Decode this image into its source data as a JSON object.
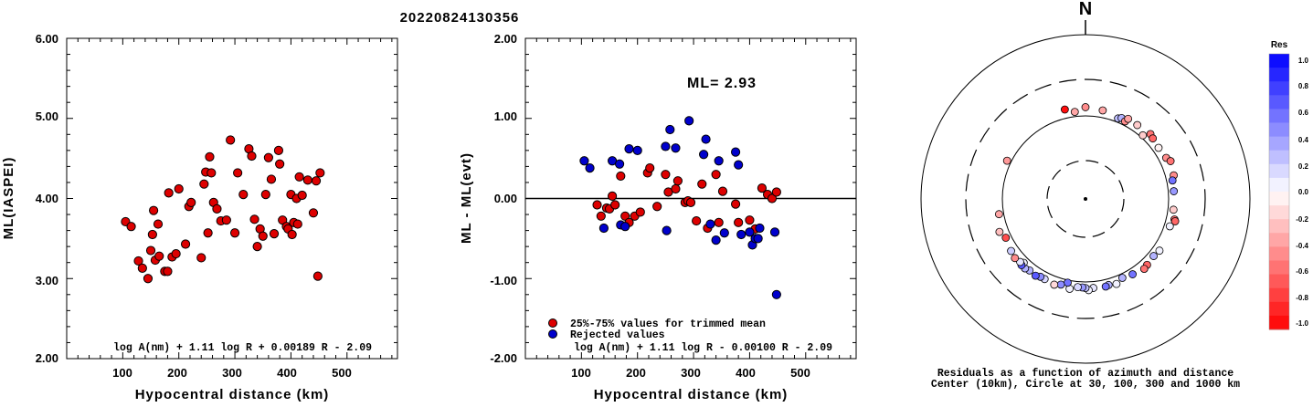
{
  "title": "20220824130356",
  "chart_data": [
    {
      "type": "scatter",
      "xlabel": "Hypocentral distance (km)",
      "ylabel": "ML(IASPEI)",
      "xlim": [
        0,
        590
      ],
      "ylim": [
        2.0,
        6.0
      ],
      "xticks": [
        "100",
        "200",
        "300",
        "400",
        "500"
      ],
      "yticks": [
        "2.00",
        "3.00",
        "4.00",
        "5.00",
        "6.00"
      ],
      "formula": "log A(nm) + 1.11 log R + 0.00189 R - 2.09",
      "series": [
        {
          "color": "#dd0000",
          "points": [
            [
              105,
              3.71
            ],
            [
              115,
              3.65
            ],
            [
              128,
              3.22
            ],
            [
              135,
              3.13
            ],
            [
              145,
              3.0
            ],
            [
              150,
              3.35
            ],
            [
              153,
              3.55
            ],
            [
              155,
              3.85
            ],
            [
              158,
              3.23
            ],
            [
              163,
              3.68
            ],
            [
              165,
              3.28
            ],
            [
              175,
              3.09
            ],
            [
              180,
              3.09
            ],
            [
              182,
              4.07
            ],
            [
              188,
              3.27
            ],
            [
              195,
              3.31
            ],
            [
              200,
              4.12
            ],
            [
              212,
              3.43
            ],
            [
              218,
              3.9
            ],
            [
              222,
              3.95
            ],
            [
              240,
              3.26
            ],
            [
              245,
              4.18
            ],
            [
              248,
              4.33
            ],
            [
              252,
              3.57
            ],
            [
              255,
              4.52
            ],
            [
              258,
              4.32
            ],
            [
              262,
              3.95
            ],
            [
              268,
              3.87
            ],
            [
              275,
              3.72
            ],
            [
              285,
              3.73
            ],
            [
              292,
              4.73
            ],
            [
              300,
              3.57
            ],
            [
              305,
              4.32
            ],
            [
              315,
              4.05
            ],
            [
              325,
              4.62
            ],
            [
              330,
              4.53
            ],
            [
              335,
              3.74
            ],
            [
              340,
              3.4
            ],
            [
              345,
              3.62
            ],
            [
              350,
              3.53
            ],
            [
              355,
              4.05
            ],
            [
              360,
              4.51
            ],
            [
              365,
              4.24
            ],
            [
              370,
              3.56
            ],
            [
              378,
              4.6
            ],
            [
              380,
              4.43
            ],
            [
              385,
              3.73
            ],
            [
              392,
              3.65
            ],
            [
              395,
              3.62
            ],
            [
              400,
              4.05
            ],
            [
              402,
              3.55
            ],
            [
              405,
              3.7
            ],
            [
              410,
              4.0
            ],
            [
              412,
              3.68
            ],
            [
              415,
              4.27
            ],
            [
              420,
              4.04
            ],
            [
              430,
              4.23
            ],
            [
              440,
              3.82
            ],
            [
              445,
              4.22
            ],
            [
              448,
              3.03
            ],
            [
              452,
              4.32
            ]
          ]
        }
      ]
    },
    {
      "type": "scatter",
      "xlabel": "Hypocentral distance (km)",
      "ylabel": "ML - ML(evt)",
      "xlim": [
        0,
        590
      ],
      "ylim": [
        -2.0,
        2.0
      ],
      "xticks": [
        "100",
        "200",
        "300",
        "400",
        "500"
      ],
      "yticks": [
        "-2.00",
        "-1.00",
        "0.00",
        "1.00",
        "2.00"
      ],
      "annotation": "ML= 2.93",
      "formula": "log A(nm) + 1.11 log R - 0.00100 R - 2.09",
      "legend": [
        {
          "label": "25%-75% values for trimmed mean",
          "color": "#dd0000"
        },
        {
          "label": "Rejected values",
          "color": "#0000cc"
        }
      ],
      "series": [
        {
          "name": "25%-75% values for trimmed mean",
          "color": "#dd0000",
          "points": [
            [
              128,
              -0.08
            ],
            [
              135,
              -0.22
            ],
            [
              145,
              -0.12
            ],
            [
              150,
              -0.13
            ],
            [
              155,
              0.03
            ],
            [
              160,
              -0.08
            ],
            [
              170,
              0.28
            ],
            [
              178,
              -0.22
            ],
            [
              185,
              -0.3
            ],
            [
              195,
              -0.22
            ],
            [
              205,
              -0.17
            ],
            [
              218,
              0.32
            ],
            [
              222,
              0.38
            ],
            [
              235,
              -0.1
            ],
            [
              250,
              0.3
            ],
            [
              255,
              0.08
            ],
            [
              268,
              0.12
            ],
            [
              272,
              0.22
            ],
            [
              285,
              -0.05
            ],
            [
              290,
              -0.03
            ],
            [
              295,
              -0.05
            ],
            [
              305,
              -0.28
            ],
            [
              315,
              0.18
            ],
            [
              325,
              -0.37
            ],
            [
              340,
              0.3
            ],
            [
              345,
              -0.3
            ],
            [
              352,
              0.09
            ],
            [
              375,
              -0.07
            ],
            [
              380,
              -0.3
            ],
            [
              400,
              -0.27
            ],
            [
              410,
              -0.38
            ],
            [
              422,
              0.13
            ],
            [
              432,
              0.05
            ],
            [
              440,
              0.0
            ],
            [
              448,
              0.08
            ]
          ]
        },
        {
          "name": "Rejected values",
          "color": "#0000cc",
          "points": [
            [
              105,
              0.47
            ],
            [
              115,
              0.38
            ],
            [
              140,
              -0.37
            ],
            [
              155,
              0.47
            ],
            [
              168,
              0.43
            ],
            [
              170,
              -0.33
            ],
            [
              178,
              -0.35
            ],
            [
              185,
              0.62
            ],
            [
              200,
              0.6
            ],
            [
              250,
              0.65
            ],
            [
              252,
              -0.4
            ],
            [
              258,
              0.86
            ],
            [
              268,
              0.63
            ],
            [
              292,
              0.97
            ],
            [
              318,
              0.55
            ],
            [
              322,
              0.74
            ],
            [
              330,
              -0.32
            ],
            [
              340,
              -0.52
            ],
            [
              345,
              0.47
            ],
            [
              355,
              -0.43
            ],
            [
              375,
              0.58
            ],
            [
              380,
              0.42
            ],
            [
              385,
              -0.45
            ],
            [
              400,
              -0.42
            ],
            [
              405,
              -0.58
            ],
            [
              410,
              -0.5
            ],
            [
              415,
              -0.5
            ],
            [
              418,
              -0.37
            ],
            [
              445,
              -0.42
            ],
            [
              448,
              -1.2
            ]
          ]
        }
      ]
    },
    {
      "type": "polar-scatter",
      "north_label": "N",
      "caption_line1": "Residuals as a function of azimuth and distance",
      "caption_line2": "Center (10km), Circle at 30, 100, 300 and 1000 km",
      "colorbar_title": "Res",
      "colorbar_ticks": [
        "1.0",
        "0.8",
        "0.6",
        "0.4",
        "0.2",
        "0.0",
        "-0.2",
        "-0.4",
        "-0.6",
        "-0.8",
        "-1.0"
      ],
      "colors": {
        "1.0": "#0000ff",
        "0.8": "#3737ff",
        "0.6": "#6e6eff",
        "0.4": "#9999ff",
        "0.2": "#cbcbff",
        "0.0": "#ffffff",
        "-0.2": "#ffd6d6",
        "-0.4": "#ffadad",
        "-0.6": "#ff7f7f",
        "-0.8": "#ff4d4d",
        "-1.0": "#ff0000"
      },
      "points": [
        [
          -13,
          130,
          -0.95
        ],
        [
          0,
          130,
          -0.45
        ],
        [
          -7,
          115,
          -0.35
        ],
        [
          11,
          124,
          -0.35
        ],
        [
          22,
          112,
          0.25
        ],
        [
          24,
          118,
          0.3
        ],
        [
          27,
          113,
          -0.45
        ],
        [
          28,
          126,
          -0.35
        ],
        [
          35,
          124,
          -0.2
        ],
        [
          45,
          130,
          -0.55
        ],
        [
          48,
          125,
          -0.6
        ],
        [
          42,
          108,
          -0.2
        ],
        [
          55,
          120,
          -0.05
        ],
        [
          63,
          125,
          -0.45
        ],
        [
          66,
          135,
          -0.55
        ],
        [
          75,
          128,
          -0.45
        ],
        [
          78,
          119,
          0.55
        ],
        [
          85,
          118,
          0.4
        ],
        [
          97,
          118,
          -0.2
        ],
        [
          103,
          128,
          -0.55
        ],
        [
          104,
          132,
          -0.6
        ],
        [
          108,
          118,
          0.05
        ],
        [
          125,
          124,
          0.05
        ],
        [
          130,
          119,
          0.3
        ],
        [
          137,
          124,
          -0.6
        ],
        [
          140,
          128,
          -0.55
        ],
        [
          148,
          119,
          0.55
        ],
        [
          155,
          113,
          0.3
        ],
        [
          160,
          125,
          0.05
        ],
        [
          165,
          120,
          0.3
        ],
        [
          167,
          123,
          0.55
        ],
        [
          175,
          121,
          0.1
        ],
        [
          178,
          128,
          0.05
        ],
        [
          180,
          120,
          0.25
        ],
        [
          182,
          118,
          0.4
        ],
        [
          185,
          118,
          0.15
        ],
        [
          190,
          128,
          0.05
        ],
        [
          192,
          108,
          0.55
        ],
        [
          196,
          120,
          0.45
        ],
        [
          200,
          128,
          -0.15
        ],
        [
          207,
          123,
          0.15
        ],
        [
          210,
          123,
          0.45
        ],
        [
          213,
          129,
          0.65
        ],
        [
          218,
          126,
          0.3
        ],
        [
          221,
          131,
          0.3
        ],
        [
          224,
          119,
          0.05
        ],
        [
          224,
          131,
          0.65
        ],
        [
          226,
          126,
          0.1
        ],
        [
          230,
          131,
          -0.45
        ],
        [
          235,
          126,
          0.2
        ],
        [
          244,
          118,
          -0.7
        ],
        [
          249,
          131,
          -0.25
        ],
        [
          260,
          115,
          -0.35
        ],
        [
          296,
          113,
          -0.4
        ]
      ]
    }
  ]
}
